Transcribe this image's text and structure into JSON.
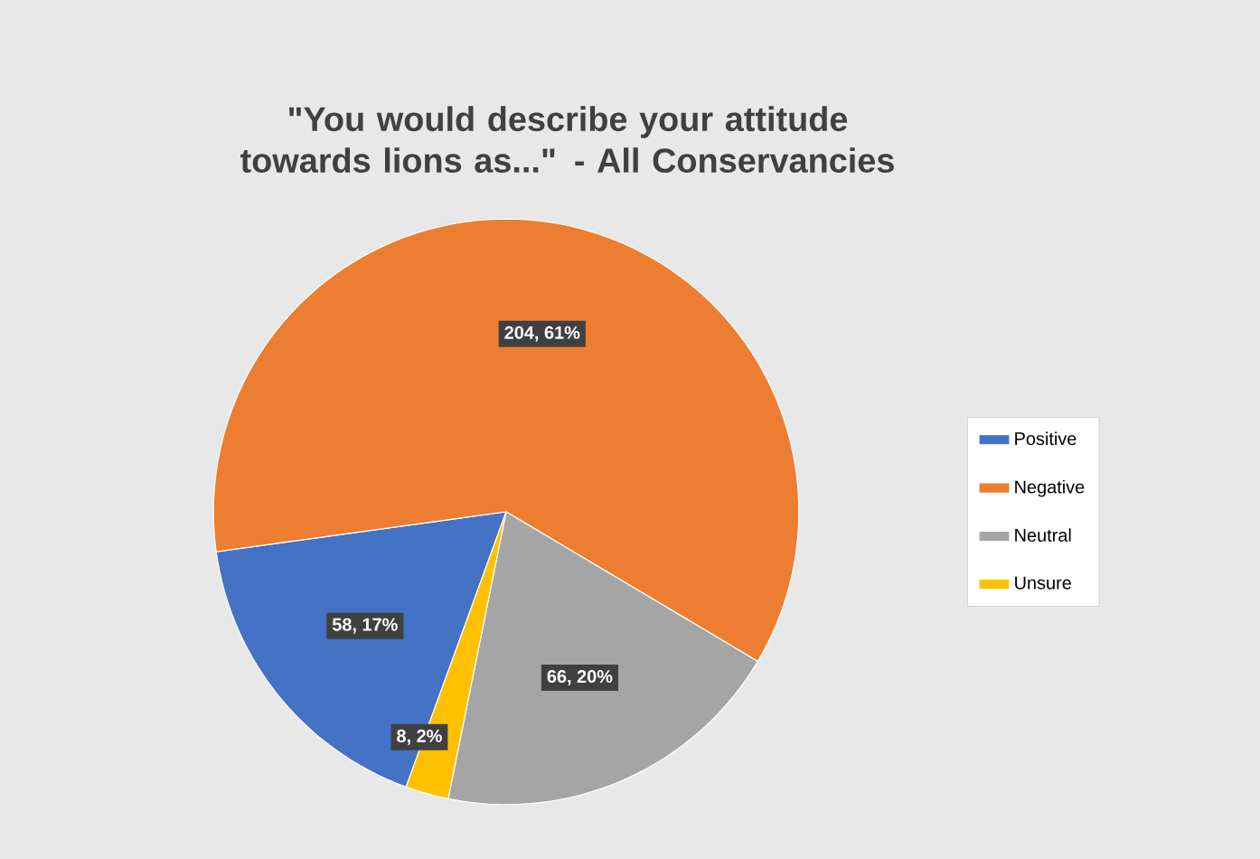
{
  "chart_data": {
    "type": "pie",
    "title": "\"You would describe your attitude towards lions as...\" - All Conservancies",
    "categories": [
      "Positive",
      "Negative",
      "Neutral",
      "Unsure"
    ],
    "values": [
      58,
      204,
      66,
      8
    ],
    "colors": [
      "#4472c4",
      "#ed7d31",
      "#a5a5a5",
      "#ffc000"
    ],
    "value_labels": [
      "58, 17%",
      "204, 61%",
      "66, 20%",
      "8, 2%"
    ],
    "legend": "right"
  }
}
